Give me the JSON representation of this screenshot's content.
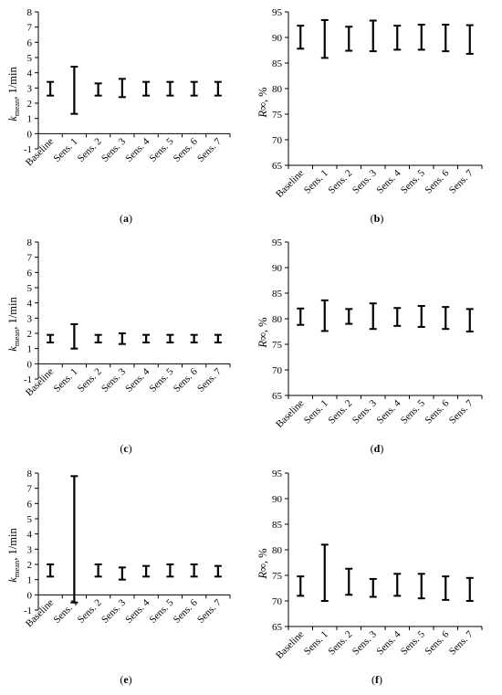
{
  "figure": {
    "categories": [
      "Baseline",
      "Sens. 1",
      "Sens. 2",
      "Sens. 3",
      "Sens. 4",
      "Sens. 5",
      "Sens. 6",
      "Sens. 7"
    ],
    "colors": {
      "axis": "#000000",
      "errorbar": "#000000",
      "background": "#ffffff"
    }
  },
  "chart_data": [
    {
      "id": "a",
      "type": "errorbar",
      "panel_label": {
        "open": "(",
        "letter": "a",
        "close": ")"
      },
      "ylabel": {
        "base": "k",
        "sub": "mean",
        "rest": ", 1/min"
      },
      "ylim": [
        -1,
        8
      ],
      "yticks": [
        -1,
        0,
        1,
        2,
        3,
        4,
        5,
        6,
        7,
        8
      ],
      "categories": [
        "Baseline",
        "Sens. 1",
        "Sens. 2",
        "Sens. 3",
        "Sens. 4",
        "Sens. 5",
        "Sens. 6",
        "Sens. 7"
      ],
      "series": [
        {
          "low": [
            2.5,
            1.3,
            2.5,
            2.4,
            2.5,
            2.5,
            2.5,
            2.5
          ],
          "high": [
            3.4,
            4.4,
            3.3,
            3.6,
            3.4,
            3.4,
            3.4,
            3.4
          ]
        }
      ],
      "grid": false
    },
    {
      "id": "b",
      "type": "errorbar",
      "panel_label": {
        "open": "(",
        "letter": "b",
        "close": ")"
      },
      "ylabel": {
        "base": "R∞",
        "sub": "",
        "rest": ", %"
      },
      "ylim": [
        65,
        95
      ],
      "yticks": [
        65,
        70,
        75,
        80,
        85,
        90,
        95
      ],
      "categories": [
        "Baseline",
        "Sens. 1",
        "Sens. 2",
        "Sens. 3",
        "Sens. 4",
        "Sens. 5",
        "Sens. 6",
        "Sens. 7"
      ],
      "series": [
        {
          "low": [
            87.8,
            86.0,
            87.4,
            87.3,
            87.6,
            87.6,
            87.3,
            86.8
          ],
          "high": [
            92.3,
            93.4,
            92.1,
            93.3,
            92.3,
            92.5,
            92.5,
            92.4
          ]
        }
      ],
      "grid": false
    },
    {
      "id": "c",
      "type": "errorbar",
      "panel_label": {
        "open": "(",
        "letter": "c",
        "close": ")"
      },
      "ylabel": {
        "base": "k",
        "sub": "mean",
        "rest": ", 1/min"
      },
      "ylim": [
        -1,
        8
      ],
      "yticks": [
        -1,
        0,
        1,
        2,
        3,
        4,
        5,
        6,
        7,
        8
      ],
      "categories": [
        "Baseline",
        "Sens. 1",
        "Sens. 2",
        "Sens. 3",
        "Sens. 4",
        "Sens. 5",
        "Sens. 6",
        "Sens. 7"
      ],
      "series": [
        {
          "low": [
            1.4,
            1.0,
            1.4,
            1.3,
            1.4,
            1.4,
            1.4,
            1.4
          ],
          "high": [
            1.9,
            2.6,
            1.9,
            2.0,
            1.9,
            1.9,
            1.9,
            1.9
          ]
        }
      ],
      "grid": false
    },
    {
      "id": "d",
      "type": "errorbar",
      "panel_label": {
        "open": "(",
        "letter": "d",
        "close": ")"
      },
      "ylabel": {
        "base": "R∞",
        "sub": "",
        "rest": ", %"
      },
      "ylim": [
        65,
        95
      ],
      "yticks": [
        65,
        70,
        75,
        80,
        85,
        90,
        95
      ],
      "categories": [
        "Baseline",
        "Sens. 1",
        "Sens. 2",
        "Sens. 3",
        "Sens. 4",
        "Sens. 5",
        "Sens. 6",
        "Sens. 7"
      ],
      "series": [
        {
          "low": [
            78.8,
            77.6,
            79.0,
            78.0,
            78.6,
            78.4,
            78.0,
            77.5
          ],
          "high": [
            82.0,
            83.6,
            81.9,
            83.0,
            82.1,
            82.5,
            82.3,
            81.9
          ]
        }
      ],
      "grid": false
    },
    {
      "id": "e",
      "type": "errorbar",
      "panel_label": {
        "open": "(",
        "letter": "e",
        "close": ")"
      },
      "ylabel": {
        "base": "k",
        "sub": "mean",
        "rest": ", 1/min"
      },
      "ylim": [
        -1,
        8
      ],
      "yticks": [
        -1,
        0,
        1,
        2,
        3,
        4,
        5,
        6,
        7,
        8
      ],
      "categories": [
        "Baseline",
        "Sens. 1",
        "Sens. 2",
        "Sens. 3",
        "Sens. 4",
        "Sens. 5",
        "Sens. 6",
        "Sens. 7"
      ],
      "series": [
        {
          "low": [
            1.2,
            -0.5,
            1.2,
            1.0,
            1.2,
            1.2,
            1.2,
            1.2
          ],
          "high": [
            2.0,
            7.8,
            2.0,
            1.8,
            1.9,
            2.0,
            2.0,
            1.9
          ]
        }
      ],
      "grid": false
    },
    {
      "id": "f",
      "type": "errorbar",
      "panel_label": {
        "open": "(",
        "letter": "f",
        "close": ")"
      },
      "ylabel": {
        "base": "R∞",
        "sub": "",
        "rest": ", %"
      },
      "ylim": [
        65,
        95
      ],
      "yticks": [
        65,
        70,
        75,
        80,
        85,
        90,
        95
      ],
      "categories": [
        "Baseline",
        "Sens. 1",
        "Sens. 2",
        "Sens. 3",
        "Sens. 4",
        "Sens. 5",
        "Sens. 6",
        "Sens. 7"
      ],
      "series": [
        {
          "low": [
            71.0,
            70.0,
            71.2,
            70.8,
            71.0,
            70.5,
            70.2,
            70.0
          ],
          "high": [
            74.8,
            81.0,
            76.3,
            74.3,
            75.3,
            75.3,
            74.8,
            74.5
          ]
        }
      ],
      "grid": false
    }
  ]
}
